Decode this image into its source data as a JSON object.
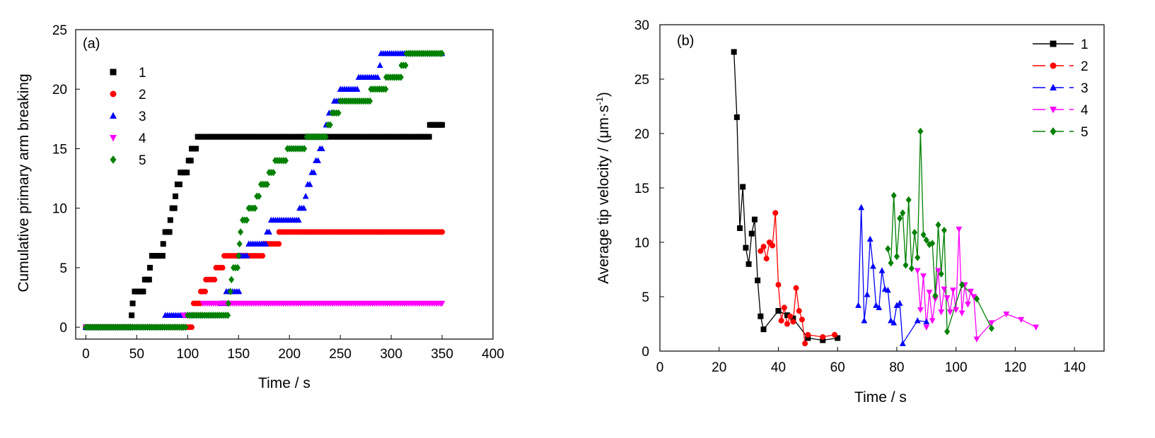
{
  "chart_data": [
    {
      "type": "scatter",
      "panel_label": "(a)",
      "xlabel": "Time / s",
      "ylabel": "Cumulative primary arm breaking",
      "xlim": [
        -10,
        400
      ],
      "ylim": [
        -1,
        25
      ],
      "xticks": [
        "0",
        "50",
        "100",
        "150",
        "200",
        "250",
        "300",
        "350",
        "400"
      ],
      "yticks": [
        "0",
        "5",
        "10",
        "15",
        "20",
        "25"
      ],
      "legend_position": "top-left",
      "series": [
        {
          "name": "1",
          "marker": "square",
          "color": "#000000",
          "steps": [
            [
              0,
              0
            ],
            [
              45,
              1
            ],
            [
              46,
              2
            ],
            [
              48,
              3
            ],
            [
              58,
              4
            ],
            [
              63,
              5
            ],
            [
              65,
              6
            ],
            [
              76,
              7
            ],
            [
              78,
              8
            ],
            [
              83,
              9
            ],
            [
              85,
              10
            ],
            [
              88,
              11
            ],
            [
              90,
              12
            ],
            [
              93,
              13
            ],
            [
              101,
              14
            ],
            [
              104,
              15
            ],
            [
              110,
              16
            ],
            [
              338,
              17
            ],
            [
              350,
              17
            ]
          ]
        },
        {
          "name": "2",
          "marker": "circle",
          "color": "#ff0000",
          "steps": [
            [
              0,
              0
            ],
            [
              104,
              0
            ],
            [
              105,
              1
            ],
            [
              106,
              2
            ],
            [
              113,
              3
            ],
            [
              118,
              4
            ],
            [
              128,
              5
            ],
            [
              136,
              6
            ],
            [
              175,
              7
            ],
            [
              190,
              8
            ],
            [
              350,
              8
            ]
          ]
        },
        {
          "name": "3",
          "marker": "triangle-up",
          "color": "#0000ff",
          "steps": [
            [
              0,
              0
            ],
            [
              77,
              0
            ],
            [
              78,
              1
            ],
            [
              98,
              1
            ],
            [
              133,
              2
            ],
            [
              138,
              3
            ],
            [
              152,
              6
            ],
            [
              160,
              7
            ],
            [
              178,
              8
            ],
            [
              182,
              9
            ],
            [
              210,
              10
            ],
            [
              216,
              11
            ],
            [
              218,
              12
            ],
            [
              222,
              13
            ],
            [
              226,
              14
            ],
            [
              230,
              15
            ],
            [
              234,
              16
            ],
            [
              236,
              17
            ],
            [
              239,
              18
            ],
            [
              244,
              19
            ],
            [
              250,
              20
            ],
            [
              268,
              21
            ],
            [
              289,
              22
            ],
            [
              290,
              23
            ],
            [
              350,
              23
            ]
          ]
        },
        {
          "name": "4",
          "marker": "triangle-down",
          "color": "#ff00ff",
          "steps": [
            [
              0,
              0
            ],
            [
              95,
              0
            ],
            [
              96,
              1
            ],
            [
              115,
              2
            ],
            [
              350,
              2
            ]
          ]
        },
        {
          "name": "5",
          "marker": "diamond",
          "color": "#008000",
          "steps": [
            [
              0,
              0
            ],
            [
              98,
              0
            ],
            [
              100,
              1
            ],
            [
              140,
              2
            ],
            [
              142,
              3
            ],
            [
              143,
              4
            ],
            [
              145,
              5
            ],
            [
              150,
              6
            ],
            [
              151,
              7
            ],
            [
              152,
              8
            ],
            [
              154,
              9
            ],
            [
              160,
              10
            ],
            [
              168,
              11
            ],
            [
              172,
              12
            ],
            [
              180,
              13
            ],
            [
              186,
              14
            ],
            [
              198,
              15
            ],
            [
              217,
              16
            ],
            [
              238,
              17
            ],
            [
              242,
              18
            ],
            [
              250,
              19
            ],
            [
              280,
              20
            ],
            [
              295,
              21
            ],
            [
              310,
              22
            ],
            [
              315,
              23
            ],
            [
              350,
              23
            ]
          ]
        }
      ]
    },
    {
      "type": "line",
      "panel_label": "(b)",
      "xlabel": "Time / s",
      "ylabel_main": "Average tip velocity / (μm·s",
      "ylabel_sup": "-1",
      "ylabel_close": ")",
      "xlim": [
        0,
        150
      ],
      "ylim": [
        0,
        30
      ],
      "xticks": [
        "0",
        "20",
        "40",
        "60",
        "80",
        "100",
        "120",
        "140"
      ],
      "yticks": [
        "0",
        "5",
        "10",
        "15",
        "20",
        "25",
        "30"
      ],
      "legend_position": "top-right",
      "series": [
        {
          "name": "1",
          "marker": "square",
          "color": "#000000",
          "x": [
            25,
            26,
            27,
            28,
            29,
            30,
            31,
            32,
            33,
            34,
            35,
            40,
            43,
            45,
            50,
            55,
            60
          ],
          "y": [
            27.5,
            21.5,
            11.3,
            15.1,
            9.5,
            8.0,
            10.8,
            12.1,
            6.5,
            3.2,
            2.0,
            3.7,
            3.3,
            3.0,
            1.2,
            1.0,
            1.2
          ]
        },
        {
          "name": "2",
          "marker": "circle",
          "color": "#ff0000",
          "x": [
            34,
            35,
            36,
            37,
            38,
            39,
            40,
            41,
            42,
            43,
            44,
            45,
            46,
            47,
            48,
            49,
            50,
            55,
            59
          ],
          "y": [
            9.2,
            9.6,
            8.5,
            10.0,
            9.7,
            12.7,
            6.1,
            2.8,
            4.0,
            2.5,
            3.2,
            2.7,
            5.8,
            3.7,
            2.9,
            0.7,
            1.5,
            1.3,
            1.5
          ]
        },
        {
          "name": "3",
          "marker": "triangle-up",
          "color": "#0000ff",
          "x": [
            67,
            68,
            69,
            70,
            71,
            72,
            73,
            74,
            75,
            76,
            77,
            78,
            79,
            80,
            81,
            82,
            87,
            90
          ],
          "y": [
            4.2,
            13.2,
            2.8,
            5.2,
            10.3,
            7.8,
            4.2,
            4.0,
            7.4,
            5.7,
            5.6,
            2.8,
            2.6,
            4.2,
            4.4,
            0.7,
            2.8,
            2.7
          ]
        },
        {
          "name": "4",
          "marker": "triangle-down",
          "color": "#ff00ff",
          "x": [
            87,
            88,
            89,
            90,
            91,
            92,
            93,
            94,
            95,
            96,
            97,
            98,
            99,
            100,
            101,
            102,
            103,
            104,
            105,
            106,
            107,
            112,
            117,
            122,
            127
          ],
          "y": [
            7.4,
            3.8,
            6.9,
            2.2,
            5.4,
            2.8,
            4.8,
            7.4,
            3.6,
            5.7,
            4.9,
            3.6,
            5.6,
            3.8,
            11.2,
            3.5,
            6.1,
            4.3,
            5.5,
            5.0,
            1.1,
            2.6,
            3.4,
            2.9,
            2.2
          ]
        },
        {
          "name": "5",
          "marker": "diamond",
          "color": "#008000",
          "x": [
            77,
            78,
            79,
            80,
            81,
            82,
            83,
            84,
            85,
            86,
            87,
            88,
            89,
            90,
            91,
            92,
            93,
            94,
            95,
            96,
            97,
            102,
            107,
            112
          ],
          "y": [
            9.4,
            8.1,
            14.3,
            8.7,
            12.2,
            12.7,
            7.9,
            13.9,
            7.6,
            10.9,
            8.6,
            20.2,
            10.7,
            10.2,
            9.8,
            9.9,
            5.1,
            11.6,
            7.1,
            11.1,
            1.8,
            6.1,
            4.8,
            2.1
          ]
        }
      ]
    }
  ]
}
